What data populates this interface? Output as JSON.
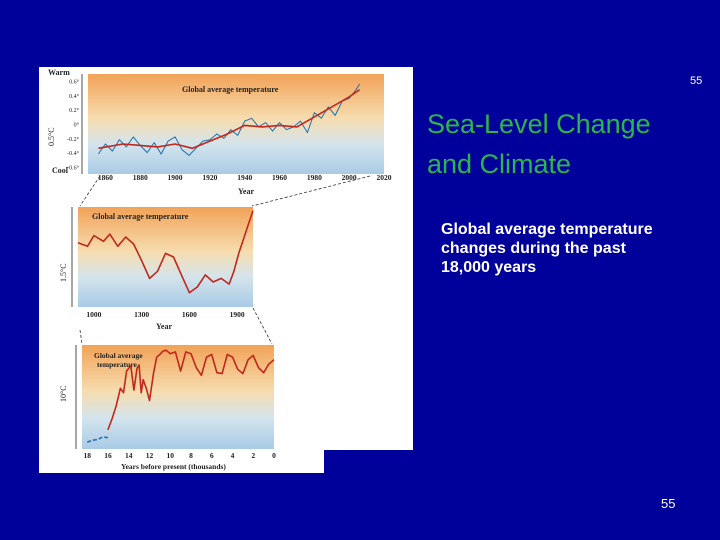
{
  "slide": {
    "title_line1": "Sea-Level Change",
    "title_line2": "and Climate",
    "body": "Global average temperature changes during the past 18,000 years",
    "slide_number_top": "55",
    "slide_number_bottom": "55",
    "background_color": "#00009a",
    "title_color": "#2db44b"
  },
  "chart_data": [
    {
      "type": "line",
      "title": "Global average temperature",
      "xlabel": "Year",
      "ylabel": "0.5°C",
      "y_end_labels": {
        "top": "Warm",
        "bottom": "Cool"
      },
      "x_ticks": [
        "1860",
        "1880",
        "1900",
        "1920",
        "1940",
        "1960",
        "1980",
        "2000",
        "2020"
      ],
      "y_ticks": [
        "0.6°",
        "0.4°",
        "0.2°",
        "0°",
        "-0.2°",
        "-0.4°",
        "-0.6°"
      ],
      "xlim": [
        1850,
        2020
      ],
      "ylim": [
        -0.7,
        0.7
      ],
      "series": [
        {
          "color": "#1f6fb0",
          "x": [
            1856,
            1860,
            1864,
            1868,
            1872,
            1876,
            1880,
            1884,
            1888,
            1892,
            1896,
            1900,
            1904,
            1908,
            1912,
            1916,
            1920,
            1924,
            1928,
            1932,
            1936,
            1940,
            1944,
            1948,
            1952,
            1956,
            1960,
            1964,
            1968,
            1972,
            1976,
            1980,
            1984,
            1988,
            1992,
            1996,
            2000,
            2004,
            2006
          ],
          "y": [
            -0.42,
            -0.28,
            -0.38,
            -0.22,
            -0.32,
            -0.18,
            -0.3,
            -0.4,
            -0.26,
            -0.42,
            -0.24,
            -0.18,
            -0.36,
            -0.44,
            -0.34,
            -0.24,
            -0.22,
            -0.14,
            -0.2,
            -0.08,
            -0.16,
            0.04,
            0.08,
            -0.04,
            0.02,
            -0.1,
            0.02,
            -0.08,
            -0.04,
            0.04,
            -0.12,
            0.16,
            0.08,
            0.24,
            0.12,
            0.32,
            0.36,
            0.48,
            0.56
          ]
        },
        {
          "color": "#c0281c",
          "x": [
            1856,
            1870,
            1880,
            1890,
            1900,
            1910,
            1920,
            1930,
            1940,
            1950,
            1960,
            1970,
            1980,
            1990,
            2000,
            2006
          ],
          "y": [
            -0.34,
            -0.28,
            -0.3,
            -0.32,
            -0.28,
            -0.34,
            -0.24,
            -0.14,
            -0.02,
            -0.04,
            -0.02,
            -0.04,
            0.1,
            0.24,
            0.38,
            0.48
          ]
        }
      ]
    },
    {
      "type": "line",
      "title": "Global average temperature",
      "xlabel": "Year",
      "ylabel": "1.5°C",
      "x_ticks": [
        "1000",
        "1300",
        "1600",
        "1900"
      ],
      "xlim": [
        900,
        2000
      ],
      "ylim": [
        -0.8,
        0.6
      ],
      "series": [
        {
          "color": "#c0281c",
          "x": [
            900,
            960,
            1000,
            1060,
            1100,
            1150,
            1200,
            1250,
            1300,
            1350,
            1400,
            1450,
            1500,
            1550,
            1600,
            1650,
            1700,
            1750,
            1800,
            1850,
            1880,
            1910,
            1940,
            1970,
            2000
          ],
          "y": [
            0.1,
            0.05,
            0.2,
            0.12,
            0.22,
            0.05,
            0.18,
            0.08,
            -0.15,
            -0.4,
            -0.3,
            -0.05,
            -0.1,
            -0.35,
            -0.6,
            -0.52,
            -0.35,
            -0.45,
            -0.4,
            -0.48,
            -0.3,
            -0.05,
            0.15,
            0.35,
            0.55
          ]
        }
      ]
    },
    {
      "type": "line",
      "title": "Global average temperature",
      "xlabel": "Years before present (thousands)",
      "ylabel": "10°C",
      "x_ticks": [
        "18",
        "16",
        "14",
        "12",
        "10",
        "8",
        "6",
        "4",
        "2",
        "0"
      ],
      "xlim": [
        18.5,
        0
      ],
      "ylim": [
        -10,
        2
      ],
      "series": [
        {
          "color": "#1f6fb0",
          "dashed": true,
          "x": [
            18,
            17.5,
            17,
            16.5,
            16
          ],
          "y": [
            -9.2,
            -9.0,
            -8.9,
            -8.6,
            -8.7
          ]
        },
        {
          "color": "#c0281c",
          "x": [
            16,
            15.6,
            15.2,
            14.8,
            14.5,
            14.2,
            13.8,
            13.5,
            13.2,
            13,
            12.8,
            12.6,
            12.3,
            12,
            11.6,
            11.3,
            11,
            10.7,
            10.4,
            10,
            9.5,
            9,
            8.5,
            8,
            7.5,
            7,
            6.5,
            6,
            5.5,
            5,
            4.5,
            4,
            3.5,
            3,
            2.5,
            2,
            1.5,
            1,
            0.5,
            0
          ],
          "y": [
            -7.8,
            -6.5,
            -5.0,
            -3.0,
            -3.5,
            -1.0,
            -0.4,
            -3.2,
            -0.7,
            -0.3,
            -3.5,
            -2.0,
            -3.0,
            -4.4,
            -1.2,
            0.6,
            0.9,
            1.3,
            1.4,
            1.0,
            1.2,
            -1.0,
            1.2,
            1.0,
            -0.6,
            -1.5,
            0.6,
            0.9,
            -1.2,
            -1.3,
            0.9,
            0.6,
            -0.8,
            -1.3,
            0.3,
            0.8,
            -0.6,
            -1.2,
            -0.2,
            0.3
          ]
        }
      ]
    }
  ]
}
